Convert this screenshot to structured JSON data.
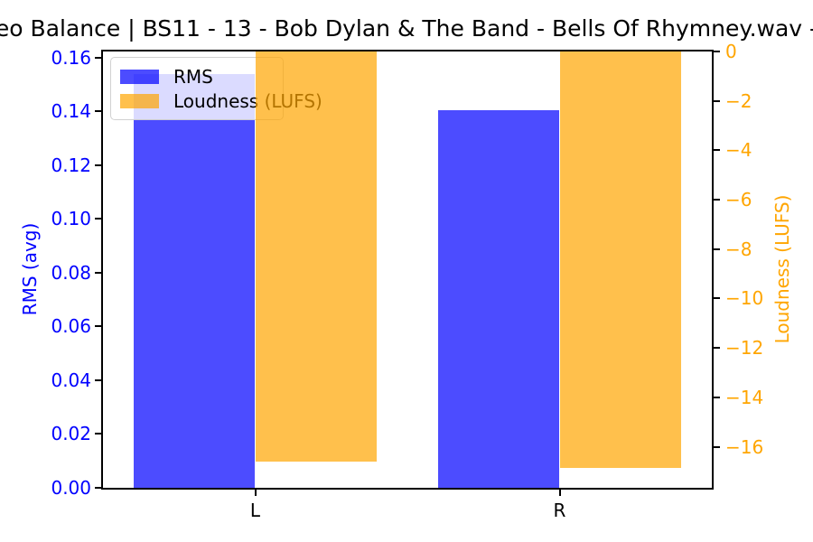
{
  "title": "eo Balance | BS11 - 13 - Bob Dylan & The Band - Bells Of Rhymney.wav -",
  "chart_data": {
    "type": "bar",
    "categories": [
      "L",
      "R"
    ],
    "category_positions": [
      0.25,
      0.75
    ],
    "bar_width_frac": 0.2,
    "series": [
      {
        "name": "RMS",
        "axis": "left",
        "color": "rgba(0,0,255,0.7)",
        "values": [
          0.154,
          0.1405
        ]
      },
      {
        "name": "Loudness (LUFS)",
        "axis": "right",
        "color": "rgba(255,165,0,0.7)",
        "values": [
          -16.6,
          -16.85
        ]
      }
    ],
    "left_axis": {
      "label": "RMS (avg)",
      "color": "#0000ff",
      "range": [
        0,
        0.1623
      ],
      "tick_values": [
        0,
        0.02,
        0.04,
        0.06,
        0.08,
        0.1,
        0.12,
        0.14,
        0.16
      ],
      "tick_labels": [
        "0.00",
        "0.02",
        "0.04",
        "0.06",
        "0.08",
        "0.10",
        "0.12",
        "0.14",
        "0.16"
      ]
    },
    "right_axis": {
      "label": "Loudness (LUFS)",
      "color": "#ffa500",
      "range": [
        -17.66,
        0
      ],
      "tick_values": [
        0,
        -2,
        -4,
        -6,
        -8,
        -10,
        -12,
        -14,
        -16
      ],
      "tick_labels": [
        "0",
        "−2",
        "−4",
        "−6",
        "−8",
        "−10",
        "−12",
        "−14",
        "−16"
      ]
    },
    "legend": {
      "position": "upper left",
      "entries": [
        "RMS",
        "Loudness (LUFS)"
      ]
    },
    "grid": false,
    "background": "#ffffff"
  }
}
